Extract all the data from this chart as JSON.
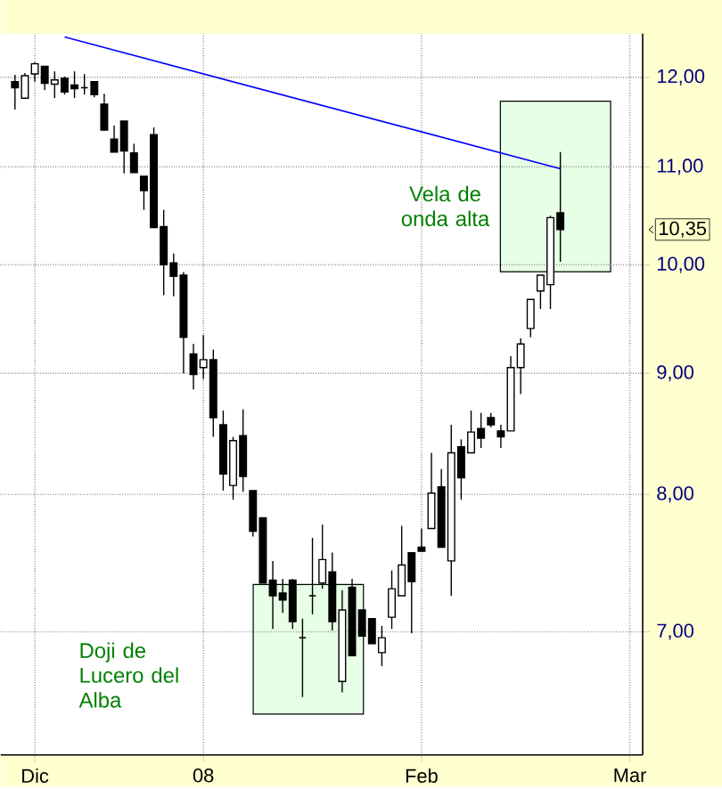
{
  "chart_data": {
    "type": "candlestick",
    "categories": [
      null,
      null,
      "Dic",
      null,
      null,
      null,
      null,
      null,
      null,
      null,
      null,
      null,
      null,
      null,
      null,
      null,
      null,
      null,
      null,
      "08",
      null,
      null,
      null,
      null,
      null,
      null,
      null,
      null,
      null,
      null,
      null,
      null,
      null,
      null,
      null,
      null,
      null,
      null,
      null,
      null,
      null,
      "Feb",
      null,
      null,
      null,
      null,
      null,
      null,
      null,
      null,
      null,
      null,
      null,
      null,
      null,
      null,
      null,
      null,
      null,
      null,
      null,
      null,
      "Mar"
    ],
    "ohlc": [
      [
        11.95,
        12.03,
        11.63,
        11.88
      ],
      [
        11.76,
        12.05,
        11.76,
        12.02
      ],
      [
        12.04,
        12.18,
        11.95,
        12.16
      ],
      [
        12.13,
        12.13,
        11.85,
        11.93
      ],
      [
        11.92,
        12.07,
        11.76,
        11.97
      ],
      [
        11.99,
        12.01,
        11.8,
        11.83
      ],
      [
        11.91,
        12.07,
        11.76,
        11.87
      ],
      [
        11.88,
        12.04,
        11.8,
        11.88
      ],
      [
        11.95,
        11.95,
        11.77,
        11.8
      ],
      [
        11.69,
        11.81,
        11.4,
        11.4
      ],
      [
        11.3,
        11.45,
        11.16,
        11.16
      ],
      [
        11.5,
        11.5,
        10.93,
        11.17
      ],
      [
        11.15,
        11.25,
        10.94,
        10.94
      ],
      [
        10.9,
        10.9,
        10.55,
        10.75
      ],
      [
        11.35,
        11.43,
        10.37,
        10.37
      ],
      [
        10.38,
        10.55,
        9.71,
        10.0
      ],
      [
        10.02,
        10.11,
        9.7,
        9.89
      ],
      [
        9.9,
        9.93,
        9.0,
        9.32
      ],
      [
        9.17,
        9.26,
        8.86,
        8.99
      ],
      [
        9.05,
        9.34,
        8.95,
        9.12
      ],
      [
        9.12,
        9.21,
        8.46,
        8.62
      ],
      [
        8.56,
        8.68,
        8.03,
        8.16
      ],
      [
        8.07,
        8.46,
        7.96,
        8.43
      ],
      [
        8.47,
        8.69,
        8.02,
        8.14
      ],
      [
        8.03,
        8.03,
        7.68,
        7.72
      ],
      [
        7.82,
        7.82,
        7.34,
        7.34
      ],
      [
        7.36,
        7.5,
        7.02,
        7.25
      ],
      [
        7.27,
        7.37,
        7.13,
        7.22
      ],
      [
        7.36,
        7.37,
        7.02,
        7.07
      ],
      [
        6.96,
        7.09,
        6.57,
        6.96
      ],
      [
        7.25,
        7.67,
        7.12,
        7.25
      ],
      [
        7.34,
        7.77,
        7.3,
        7.51
      ],
      [
        7.42,
        7.56,
        7.01,
        7.07
      ],
      [
        6.67,
        7.29,
        6.6,
        7.15
      ],
      [
        7.31,
        7.37,
        6.84,
        6.84
      ],
      [
        7.15,
        7.15,
        6.97,
        6.97
      ],
      [
        7.09,
        7.09,
        6.92,
        6.92
      ],
      [
        6.86,
        7.04,
        6.77,
        6.96
      ],
      [
        7.1,
        7.43,
        7.02,
        7.3
      ],
      [
        7.25,
        7.76,
        7.25,
        7.47
      ],
      [
        7.56,
        7.56,
        6.99,
        7.35
      ],
      [
        7.6,
        7.74,
        7.57,
        7.57
      ],
      [
        7.74,
        8.33,
        7.74,
        8.01
      ],
      [
        8.06,
        8.2,
        7.6,
        7.6
      ],
      [
        7.5,
        8.56,
        7.25,
        8.33
      ],
      [
        8.38,
        8.44,
        7.96,
        8.13
      ],
      [
        8.33,
        8.68,
        8.33,
        8.5
      ],
      [
        8.53,
        8.66,
        8.37,
        8.45
      ],
      [
        8.62,
        8.66,
        8.54,
        8.56
      ],
      [
        8.51,
        8.56,
        8.37,
        8.46
      ],
      [
        8.51,
        9.15,
        8.51,
        9.05
      ],
      [
        9.05,
        9.31,
        8.82,
        9.26
      ],
      [
        9.4,
        9.67,
        9.32,
        9.67
      ],
      [
        9.75,
        9.9,
        9.58,
        9.9
      ],
      [
        9.81,
        10.49,
        9.58,
        10.47
      ],
      [
        10.52,
        11.16,
        10.03,
        10.35
      ],
      null,
      null,
      null,
      null,
      null,
      null,
      null
    ],
    "series": [
      {
        "type": "line",
        "color": "#0000ff",
        "values": [
          null,
          null,
          null,
          null,
          null,
          12.48,
          null,
          null,
          null,
          null,
          null,
          null,
          null,
          null,
          null,
          null,
          null,
          null,
          null,
          null,
          null,
          null,
          null,
          null,
          null,
          null,
          null,
          null,
          null,
          null,
          null,
          null,
          null,
          null,
          null,
          null,
          null,
          null,
          null,
          null,
          null,
          null,
          null,
          null,
          null,
          null,
          null,
          null,
          null,
          null,
          null,
          null,
          null,
          null,
          null,
          10.98,
          null,
          null,
          null,
          null,
          null,
          null,
          null
        ]
      }
    ],
    "log": "y",
    "ylim": [
      6.21,
      12.52
    ],
    "yticks": [
      {
        "value": 7,
        "label": "7,00"
      },
      {
        "value": 8,
        "label": "8,00"
      },
      {
        "value": 9,
        "label": "9,00"
      },
      {
        "value": 10,
        "label": "10,00"
      },
      {
        "value": 11,
        "label": "11,00"
      },
      {
        "value": 12,
        "label": "12,00"
      }
    ],
    "grid": true,
    "annotations": [
      "Vela de onda alta",
      "Doji de Lucero del Alba",
      "10,35"
    ]
  }
}
